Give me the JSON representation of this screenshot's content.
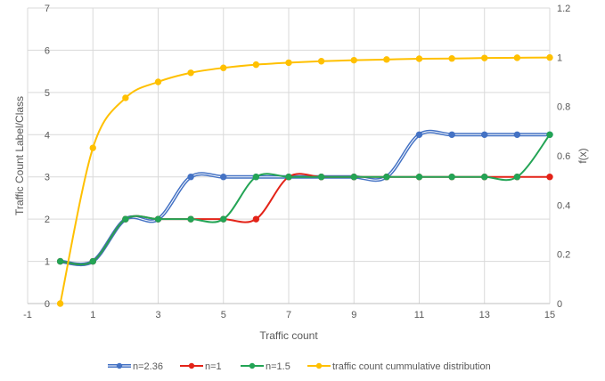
{
  "chart_data": {
    "type": "line",
    "title": "",
    "xlabel": "Traffic count",
    "ylabel": "Traffic Count Label/Class",
    "y2label": "f(x)",
    "xlim": [
      -1,
      15
    ],
    "ylim": [
      0,
      7
    ],
    "y2lim": [
      0,
      1.2
    ],
    "x_ticks": [
      -1,
      1,
      3,
      5,
      7,
      9,
      11,
      13,
      15
    ],
    "y_ticks": [
      0,
      1,
      2,
      3,
      4,
      5,
      6,
      7
    ],
    "y2_ticks": [
      0,
      0.2,
      0.4,
      0.6,
      0.8,
      1,
      1.2
    ],
    "grid": true,
    "legend": "bottom",
    "x": [
      0,
      1,
      2,
      3,
      4,
      5,
      6,
      7,
      8,
      9,
      10,
      11,
      12,
      13,
      14,
      15
    ],
    "series": [
      {
        "name": "n=2.36",
        "axis": "left",
        "color": "#4472C4",
        "values": [
          1,
          1,
          2,
          2,
          3,
          3,
          3,
          3,
          3,
          3,
          3,
          4,
          4,
          4,
          4,
          4
        ]
      },
      {
        "name": "n=1",
        "axis": "left",
        "color": "#E32318",
        "values": [
          1,
          1,
          2,
          2,
          2,
          2,
          2,
          3,
          3,
          3,
          3,
          3,
          3,
          3,
          3,
          3
        ]
      },
      {
        "name": "n=1.5",
        "axis": "left",
        "color": "#23A455",
        "values": [
          1,
          1,
          2,
          2,
          2,
          2,
          3,
          3,
          3,
          3,
          3,
          3,
          3,
          3,
          3,
          4
        ]
      },
      {
        "name": "traffic count cummulative distribution",
        "axis": "right",
        "color": "#FFC000",
        "values": [
          0,
          0.632,
          0.835,
          0.9,
          0.937,
          0.957,
          0.97,
          0.978,
          0.984,
          0.988,
          0.991,
          0.994,
          0.995,
          0.997,
          0.998,
          0.999
        ]
      }
    ]
  }
}
